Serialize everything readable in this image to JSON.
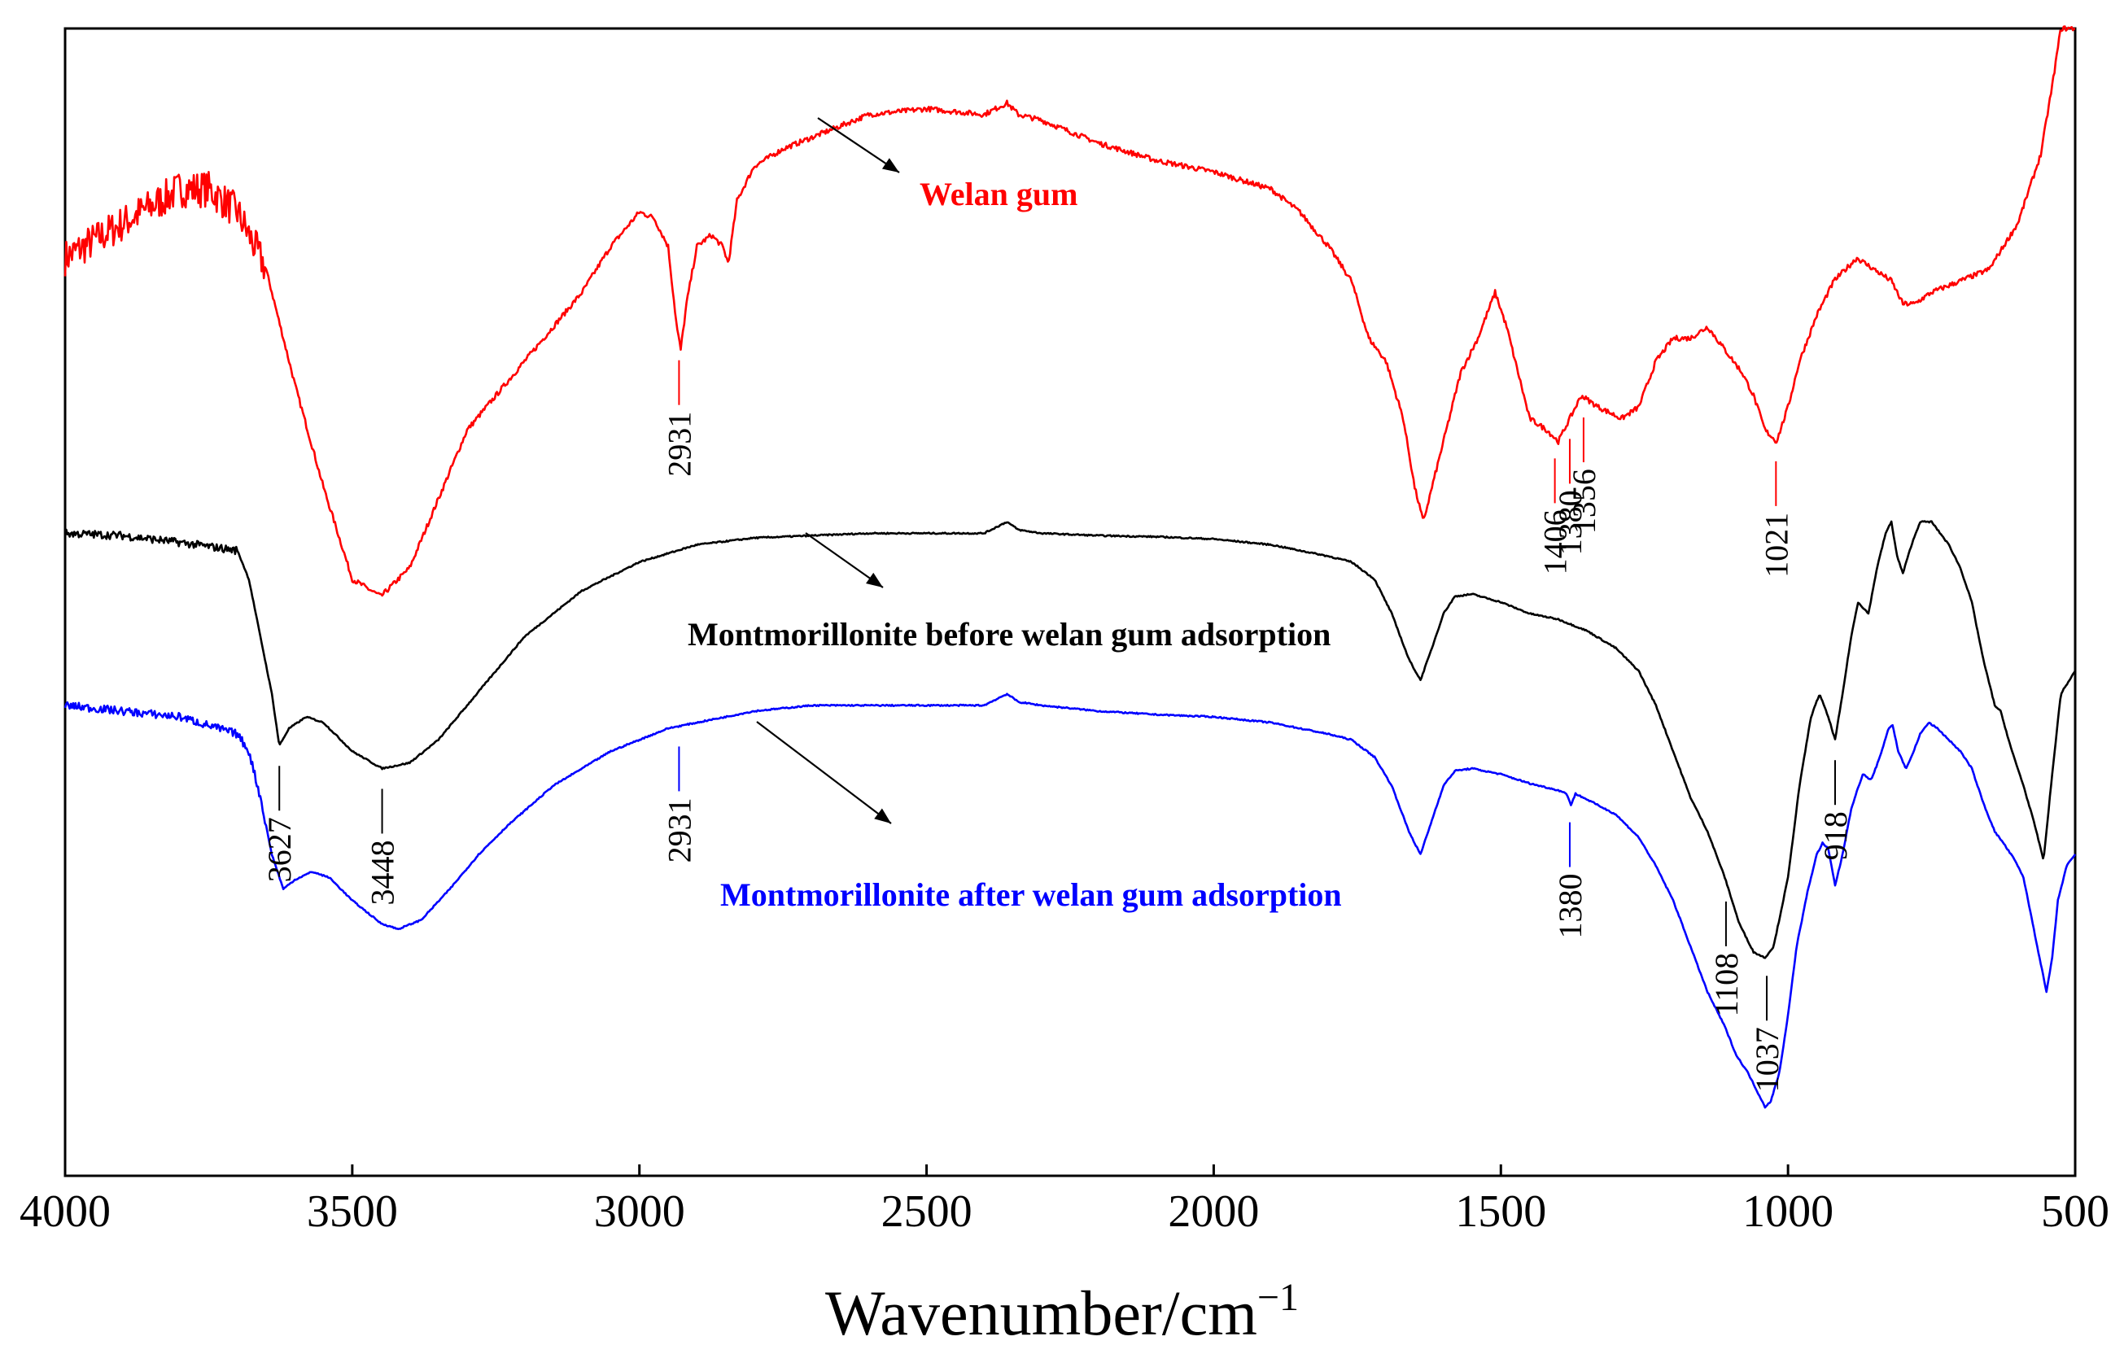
{
  "chart_data": {
    "type": "line",
    "title": "",
    "xlabel": "Wavenumber/cm",
    "xlabel_superscript": "−1",
    "ylabel": "",
    "xlim": [
      4000,
      500
    ],
    "x_reversed": true,
    "y_units": "arbitrary (offset transmittance)",
    "ylim": [
      0,
      100
    ],
    "y_ticks_shown": false,
    "grid": false,
    "x_ticks": [
      4000,
      3500,
      3000,
      2500,
      2000,
      1500,
      1000,
      500
    ],
    "x_tick_labels": [
      "4000",
      "3500",
      "3000",
      "2500",
      "2000",
      "1500",
      "1000",
      "500"
    ],
    "series": [
      {
        "name": "Welan gum",
        "color": "#ff0000",
        "noisy_above_wn": 3650,
        "points": [
          [
            4000,
            80
          ],
          [
            3900,
            83
          ],
          [
            3800,
            86
          ],
          [
            3750,
            86
          ],
          [
            3700,
            84
          ],
          [
            3650,
            79
          ],
          [
            3600,
            69
          ],
          [
            3550,
            60
          ],
          [
            3500,
            52
          ],
          [
            3450,
            50.5
          ],
          [
            3400,
            53
          ],
          [
            3350,
            59
          ],
          [
            3300,
            65
          ],
          [
            3200,
            71
          ],
          [
            3100,
            77
          ],
          [
            3050,
            81
          ],
          [
            3000,
            84
          ],
          [
            2975,
            83.5
          ],
          [
            2950,
            81
          ],
          [
            2935,
            74
          ],
          [
            2928,
            72
          ],
          [
            2918,
            76
          ],
          [
            2900,
            81
          ],
          [
            2875,
            82
          ],
          [
            2855,
            81
          ],
          [
            2845,
            79.5
          ],
          [
            2830,
            85
          ],
          [
            2800,
            88
          ],
          [
            2750,
            89.5
          ],
          [
            2700,
            90.5
          ],
          [
            2600,
            92.5
          ],
          [
            2500,
            93
          ],
          [
            2400,
            92.5
          ],
          [
            2360,
            93.5
          ],
          [
            2340,
            92.5
          ],
          [
            2300,
            92
          ],
          [
            2200,
            90
          ],
          [
            2100,
            88.5
          ],
          [
            2000,
            87.5
          ],
          [
            1900,
            86
          ],
          [
            1850,
            84
          ],
          [
            1800,
            81
          ],
          [
            1760,
            78
          ],
          [
            1730,
            73
          ],
          [
            1700,
            71
          ],
          [
            1670,
            66
          ],
          [
            1650,
            60
          ],
          [
            1635,
            57
          ],
          [
            1620,
            60
          ],
          [
            1600,
            64
          ],
          [
            1570,
            70
          ],
          [
            1540,
            73
          ],
          [
            1510,
            77
          ],
          [
            1490,
            74
          ],
          [
            1470,
            70
          ],
          [
            1450,
            66
          ],
          [
            1420,
            65
          ],
          [
            1400,
            64
          ],
          [
            1380,
            66
          ],
          [
            1360,
            68
          ],
          [
            1330,
            67
          ],
          [
            1290,
            66
          ],
          [
            1260,
            67
          ],
          [
            1230,
            71
          ],
          [
            1200,
            73
          ],
          [
            1170,
            73
          ],
          [
            1140,
            74
          ],
          [
            1110,
            72
          ],
          [
            1080,
            70
          ],
          [
            1060,
            68
          ],
          [
            1040,
            65
          ],
          [
            1020,
            64
          ],
          [
            1000,
            67
          ],
          [
            980,
            71
          ],
          [
            950,
            75
          ],
          [
            920,
            78
          ],
          [
            880,
            80
          ],
          [
            850,
            79
          ],
          [
            820,
            78
          ],
          [
            800,
            76
          ],
          [
            780,
            76
          ],
          [
            750,
            77
          ],
          [
            700,
            78
          ],
          [
            650,
            79
          ],
          [
            600,
            83
          ],
          [
            560,
            89
          ],
          [
            540,
            95
          ],
          [
            525,
            100
          ]
        ]
      },
      {
        "name": "Montmorillonite before welan gum adsorption",
        "color": "#000000",
        "noisy_above_wn": 3700,
        "points": [
          [
            4000,
            56
          ],
          [
            3900,
            55.8
          ],
          [
            3800,
            55.2
          ],
          [
            3700,
            54.5
          ],
          [
            3680,
            52
          ],
          [
            3660,
            47
          ],
          [
            3640,
            42
          ],
          [
            3627,
            37.5
          ],
          [
            3610,
            39
          ],
          [
            3580,
            40
          ],
          [
            3550,
            39.5
          ],
          [
            3500,
            37
          ],
          [
            3448,
            35.5
          ],
          [
            3400,
            36
          ],
          [
            3350,
            38
          ],
          [
            3300,
            41
          ],
          [
            3250,
            44
          ],
          [
            3200,
            47
          ],
          [
            3100,
            51
          ],
          [
            3000,
            53.5
          ],
          [
            2900,
            55
          ],
          [
            2800,
            55.6
          ],
          [
            2700,
            55.8
          ],
          [
            2600,
            56
          ],
          [
            2500,
            56
          ],
          [
            2400,
            56
          ],
          [
            2360,
            57
          ],
          [
            2340,
            56.3
          ],
          [
            2300,
            56
          ],
          [
            2200,
            55.8
          ],
          [
            2100,
            55.7
          ],
          [
            2000,
            55.5
          ],
          [
            1900,
            55
          ],
          [
            1800,
            54
          ],
          [
            1760,
            53.5
          ],
          [
            1720,
            52
          ],
          [
            1690,
            49
          ],
          [
            1660,
            45
          ],
          [
            1640,
            43.2
          ],
          [
            1620,
            46
          ],
          [
            1600,
            49
          ],
          [
            1580,
            50.5
          ],
          [
            1550,
            50.7
          ],
          [
            1500,
            50
          ],
          [
            1450,
            49
          ],
          [
            1400,
            48.5
          ],
          [
            1350,
            47.5
          ],
          [
            1300,
            46
          ],
          [
            1260,
            44
          ],
          [
            1230,
            41
          ],
          [
            1200,
            37
          ],
          [
            1170,
            33
          ],
          [
            1140,
            30
          ],
          [
            1110,
            26
          ],
          [
            1085,
            22
          ],
          [
            1060,
            19.5
          ],
          [
            1040,
            19
          ],
          [
            1025,
            20
          ],
          [
            1000,
            26
          ],
          [
            980,
            34
          ],
          [
            960,
            40
          ],
          [
            945,
            42
          ],
          [
            930,
            40
          ],
          [
            918,
            38
          ],
          [
            905,
            42
          ],
          [
            890,
            47
          ],
          [
            878,
            50
          ],
          [
            860,
            49
          ],
          [
            845,
            53
          ],
          [
            830,
            56
          ],
          [
            820,
            57
          ],
          [
            810,
            54
          ],
          [
            800,
            52.5
          ],
          [
            785,
            55
          ],
          [
            770,
            57
          ],
          [
            750,
            57
          ],
          [
            720,
            55
          ],
          [
            700,
            53
          ],
          [
            680,
            50
          ],
          [
            660,
            45
          ],
          [
            640,
            41
          ],
          [
            630,
            40.5
          ],
          [
            610,
            37
          ],
          [
            590,
            34
          ],
          [
            570,
            30.5
          ],
          [
            555,
            27.5
          ],
          [
            540,
            35
          ],
          [
            525,
            42
          ],
          [
            500,
            44
          ]
        ]
      },
      {
        "name": "Montmorillonite after welan gum adsorption",
        "color": "#0000ff",
        "noisy_above_wn": 3650,
        "points": [
          [
            4000,
            41
          ],
          [
            3900,
            40.5
          ],
          [
            3800,
            40
          ],
          [
            3700,
            38.5
          ],
          [
            3680,
            37
          ],
          [
            3660,
            33
          ],
          [
            3640,
            28
          ],
          [
            3620,
            25
          ],
          [
            3600,
            25.8
          ],
          [
            3570,
            26.5
          ],
          [
            3540,
            26
          ],
          [
            3500,
            24
          ],
          [
            3450,
            22
          ],
          [
            3420,
            21.5
          ],
          [
            3380,
            22.3
          ],
          [
            3330,
            25
          ],
          [
            3280,
            28
          ],
          [
            3230,
            30.5
          ],
          [
            3150,
            34
          ],
          [
            3050,
            37
          ],
          [
            2950,
            39
          ],
          [
            2900,
            39.5
          ],
          [
            2800,
            40.5
          ],
          [
            2700,
            41
          ],
          [
            2500,
            41
          ],
          [
            2400,
            41
          ],
          [
            2360,
            42
          ],
          [
            2340,
            41.3
          ],
          [
            2300,
            41
          ],
          [
            2200,
            40.5
          ],
          [
            2100,
            40.2
          ],
          [
            2000,
            40
          ],
          [
            1900,
            39.5
          ],
          [
            1800,
            38.5
          ],
          [
            1760,
            38
          ],
          [
            1720,
            36.5
          ],
          [
            1690,
            34
          ],
          [
            1660,
            30
          ],
          [
            1640,
            28
          ],
          [
            1620,
            31
          ],
          [
            1600,
            34
          ],
          [
            1580,
            35.3
          ],
          [
            1550,
            35.5
          ],
          [
            1500,
            35
          ],
          [
            1450,
            34.2
          ],
          [
            1400,
            33.6
          ],
          [
            1385,
            33.3
          ],
          [
            1378,
            32.3
          ],
          [
            1370,
            33.3
          ],
          [
            1350,
            32.8
          ],
          [
            1300,
            31.5
          ],
          [
            1260,
            29.5
          ],
          [
            1230,
            27
          ],
          [
            1200,
            24
          ],
          [
            1170,
            20
          ],
          [
            1140,
            16
          ],
          [
            1110,
            13
          ],
          [
            1090,
            10.5
          ],
          [
            1070,
            9
          ],
          [
            1055,
            7.5
          ],
          [
            1040,
            6
          ],
          [
            1030,
            6.5
          ],
          [
            1015,
            9
          ],
          [
            1000,
            14
          ],
          [
            985,
            20
          ],
          [
            965,
            25
          ],
          [
            950,
            28
          ],
          [
            940,
            29
          ],
          [
            930,
            28.5
          ],
          [
            918,
            25.3
          ],
          [
            905,
            28
          ],
          [
            890,
            32
          ],
          [
            870,
            35
          ],
          [
            855,
            34.5
          ],
          [
            840,
            36.5
          ],
          [
            825,
            39
          ],
          [
            818,
            39.3
          ],
          [
            808,
            37
          ],
          [
            795,
            35.5
          ],
          [
            785,
            36.5
          ],
          [
            770,
            38.5
          ],
          [
            755,
            39.5
          ],
          [
            740,
            39
          ],
          [
            720,
            38
          ],
          [
            700,
            37
          ],
          [
            680,
            35.5
          ],
          [
            660,
            32.5
          ],
          [
            640,
            30
          ],
          [
            625,
            29
          ],
          [
            605,
            27.5
          ],
          [
            590,
            26
          ],
          [
            570,
            21
          ],
          [
            550,
            16
          ],
          [
            540,
            19
          ],
          [
            530,
            24
          ],
          [
            515,
            27
          ],
          [
            500,
            28
          ]
        ]
      }
    ],
    "series_labels": [
      {
        "text": "Welan gum",
        "series": 0
      },
      {
        "text": "Montmorillonite before welan gum adsorption",
        "series": 1
      },
      {
        "text": "Montmorillonite after welan gum adsorption",
        "series": 2
      }
    ],
    "peak_annotations": [
      {
        "label": "2931",
        "wavenumber": 2931,
        "series": 0,
        "color": "#ff0000"
      },
      {
        "label": "1406",
        "wavenumber": 1406,
        "series": 0,
        "color": "#ff0000"
      },
      {
        "label": "1380",
        "wavenumber": 1380,
        "series": 0,
        "color": "#ff0000"
      },
      {
        "label": "1356",
        "wavenumber": 1356,
        "series": 0,
        "color": "#ff0000"
      },
      {
        "label": "1021",
        "wavenumber": 1021,
        "series": 0,
        "color": "#ff0000"
      },
      {
        "label": "3627",
        "wavenumber": 3627,
        "series": 1,
        "color": "#000000"
      },
      {
        "label": "3448",
        "wavenumber": 3448,
        "series": 1,
        "color": "#000000"
      },
      {
        "label": "1108",
        "wavenumber": 1108,
        "series": 1,
        "color": "#000000"
      },
      {
        "label": "1037",
        "wavenumber": 1037,
        "series": 1,
        "color": "#000000"
      },
      {
        "label": "918",
        "wavenumber": 918,
        "series": 1,
        "color": "#000000"
      },
      {
        "label": "2931",
        "wavenumber": 2931,
        "series": 2,
        "color": "#0000ff"
      },
      {
        "label": "1380",
        "wavenumber": 1380,
        "series": 2,
        "color": "#0000ff"
      }
    ]
  }
}
